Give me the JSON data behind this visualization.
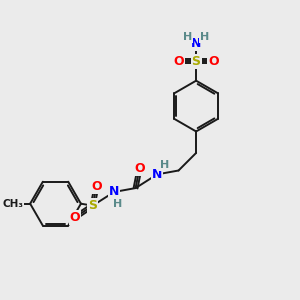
{
  "bg_color": "#ebebeb",
  "bond_color": "#1a1a1a",
  "atom_colors": {
    "N": "#0000FF",
    "O": "#FF0000",
    "S": "#AAAA00",
    "C": "#1a1a1a",
    "H": "#5a8a8a"
  },
  "figsize": [
    3.0,
    3.0
  ],
  "dpi": 100,
  "lw": 1.4
}
